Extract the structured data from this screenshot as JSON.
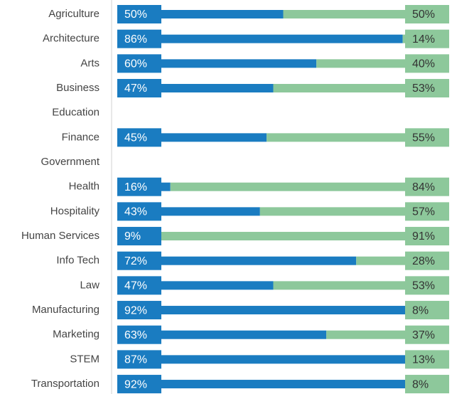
{
  "chart_data": {
    "type": "stacked-bar-100",
    "categories": [
      "Agriculture",
      "Architecture",
      "Arts",
      "Business",
      "Education",
      "Finance",
      "Government",
      "Health",
      "Hospitality",
      "Human Services",
      "Info Tech",
      "Law",
      "Manufacturing",
      "Marketing",
      "STEM",
      "Transportation"
    ],
    "series": [
      {
        "color": "#1a7cc1",
        "values": [
          50,
          86,
          60,
          47,
          null,
          45,
          null,
          16,
          43,
          9,
          72,
          47,
          92,
          63,
          87,
          92
        ],
        "value_labels": [
          "50%",
          "86%",
          "60%",
          "47%",
          null,
          "45%",
          null,
          "16%",
          "43%",
          "9%",
          "72%",
          "47%",
          "92%",
          "63%",
          "87%",
          "92%"
        ]
      },
      {
        "color": "#8dc89b",
        "values": [
          50,
          14,
          40,
          53,
          null,
          55,
          null,
          84,
          57,
          91,
          28,
          53,
          8,
          37,
          13,
          8
        ],
        "value_labels": [
          "50%",
          "14%",
          "40%",
          "53%",
          null,
          "55%",
          null,
          "84%",
          "57%",
          "91%",
          "28%",
          "53%",
          "8%",
          "37%",
          "13%",
          "8%"
        ]
      }
    ],
    "xlim": [
      0,
      100
    ]
  }
}
